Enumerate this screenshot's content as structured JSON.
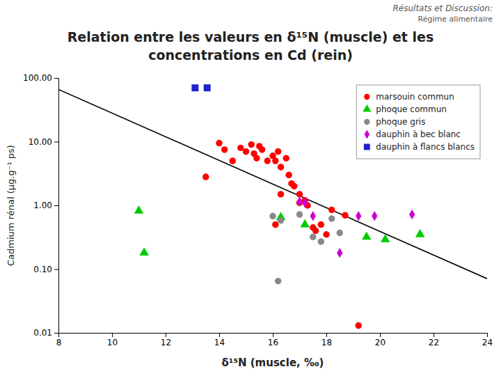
{
  "chart_data": {
    "type": "scatter",
    "title": [
      "Relation entre les valeurs en δ¹⁵N (muscle) et les",
      "concentrations en Cd (rein)"
    ],
    "annotations": [
      "Résultats et Discussion:",
      "Régime alimentaire"
    ],
    "x_label": "δ¹⁵N (muscle, ‰)",
    "y_label": "Cadmium rénal (µg.g⁻¹ ps)",
    "xlim": [
      8,
      24
    ],
    "ylim": [
      0.01,
      100
    ],
    "xticks": [
      8,
      10,
      12,
      14,
      16,
      18,
      20,
      22,
      24
    ],
    "yticks": [
      0.01,
      {
        "value": 0.1,
        "label": "0.10"
      },
      {
        "value": 1,
        "label": "1.00"
      },
      {
        "value": 10,
        "label": "10.00"
      },
      {
        "value": 100,
        "label": "100.00"
      }
    ],
    "log": "y",
    "grid": false,
    "legend": "upper right",
    "series": [
      {
        "type": "line",
        "line_style": "solid",
        "color": "#000000",
        "x": [
          8.0,
          24.0
        ],
        "values": [
          66.0693448007596,
          0.07079457843841379
        ]
      },
      {
        "name": "marsouin commun",
        "type": "scatter",
        "marker": "circle",
        "color": "#ff0000",
        "x": [
          13.5,
          14.0,
          14.2,
          14.5,
          14.8,
          15.0,
          15.2,
          15.3,
          15.4,
          15.5,
          15.6,
          15.8,
          16.0,
          16.1,
          16.2,
          16.3,
          16.5,
          16.6,
          16.7,
          16.8,
          17.0,
          17.0,
          17.2,
          17.3,
          17.5,
          17.6,
          17.8,
          18.0,
          18.2,
          18.7,
          19.2,
          16.3,
          16.1
        ],
        "values": [
          2.8,
          9.5,
          7.5,
          5.0,
          8.0,
          7.0,
          9.0,
          6.5,
          5.5,
          8.5,
          7.5,
          5.0,
          6.0,
          5.0,
          7.0,
          4.0,
          5.5,
          3.0,
          2.2,
          2.0,
          1.5,
          1.1,
          1.2,
          1.0,
          0.45,
          0.4,
          0.5,
          0.35,
          0.85,
          0.7,
          0.013,
          1.5,
          0.5
        ]
      },
      {
        "name": "phoque commun",
        "type": "scatter",
        "marker": "triangle-up",
        "color": "#00cc00",
        "x": [
          11.0,
          11.2,
          16.3,
          17.2,
          19.5,
          20.2,
          21.5
        ],
        "values": [
          0.82,
          0.18,
          0.65,
          0.5,
          0.32,
          0.29,
          0.35
        ]
      },
      {
        "name": "phoque gris",
        "type": "scatter",
        "marker": "circle",
        "color": "#888888",
        "x": [
          16.0,
          16.3,
          17.0,
          17.5,
          17.8,
          18.2,
          18.5,
          16.2
        ],
        "values": [
          0.68,
          0.58,
          0.72,
          0.32,
          0.27,
          0.62,
          0.37,
          0.065
        ]
      },
      {
        "name": "dauphin à bec blanc",
        "type": "scatter",
        "marker": "diamond",
        "color": "#cc00cc",
        "x": [
          17.0,
          17.2,
          17.5,
          18.5,
          19.2,
          19.8,
          21.2
        ],
        "values": [
          1.15,
          1.1,
          0.68,
          0.18,
          0.68,
          0.68,
          0.72
        ]
      },
      {
        "name": "dauphin à flancs blancs",
        "type": "scatter",
        "marker": "square",
        "color": "#2222cc",
        "x": [
          13.1,
          13.55
        ],
        "values": [
          70.0,
          70.0
        ]
      }
    ]
  }
}
